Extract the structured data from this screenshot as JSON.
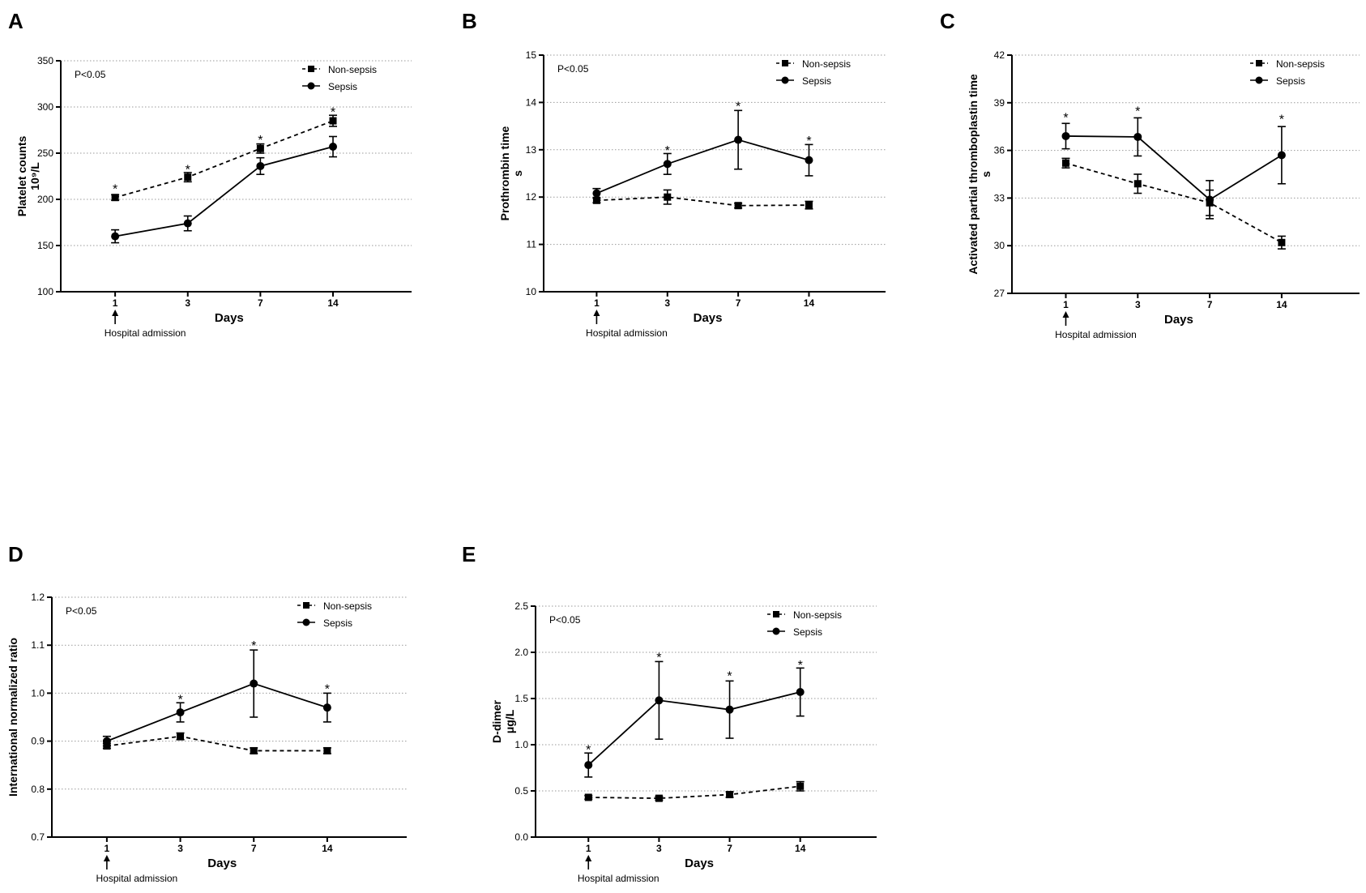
{
  "chart_data": [
    {
      "panel": "A",
      "type": "line",
      "categories": [
        "1",
        "3",
        "7",
        "14"
      ],
      "ylabel": "Platelet counts",
      "ylabel_unit": "10⁹/L",
      "xlabel": "Days",
      "ylim": [
        100,
        350
      ],
      "yticks": [
        "100",
        "150",
        "200",
        "250",
        "300",
        "350"
      ],
      "grid": true,
      "annotation": "P<0.05",
      "admission_label": "Hospital admission",
      "legend": [
        "Non-sepsis",
        "Sepsis"
      ],
      "series": [
        {
          "name": "Non-sepsis",
          "style": "dashed",
          "marker": "square",
          "values": [
            202,
            224,
            255,
            285
          ],
          "errors": [
            3,
            5,
            5,
            6
          ]
        },
        {
          "name": "Sepsis",
          "style": "solid",
          "marker": "circle",
          "values": [
            160,
            174,
            236,
            257
          ],
          "errors": [
            7,
            8,
            9,
            11
          ]
        }
      ],
      "significance": [
        "*",
        "*",
        "*",
        "*"
      ],
      "sig_values": [
        212,
        233,
        265,
        295
      ]
    },
    {
      "panel": "B",
      "type": "line",
      "categories": [
        "1",
        "3",
        "7",
        "14"
      ],
      "ylabel": "Prothrombin time",
      "ylabel_unit": "s",
      "xlabel": "Days",
      "ylim": [
        10,
        15
      ],
      "yticks": [
        "10",
        "11",
        "12",
        "13",
        "14",
        "15"
      ],
      "grid": true,
      "annotation": "P<0.05",
      "admission_label": "Hospital admission",
      "legend": [
        "Non-sepsis",
        "Sepsis"
      ],
      "series": [
        {
          "name": "Non-sepsis",
          "style": "dashed",
          "marker": "square",
          "values": [
            11.93,
            12.0,
            11.82,
            11.83
          ],
          "errors": [
            0.05,
            0.15,
            0.05,
            0.08
          ]
        },
        {
          "name": "Sepsis",
          "style": "solid",
          "marker": "circle",
          "values": [
            12.08,
            12.7,
            13.21,
            12.78
          ],
          "errors": [
            0.1,
            0.22,
            0.62,
            0.33
          ]
        }
      ],
      "significance": [
        "",
        "*",
        "*",
        "*"
      ],
      "sig_values": [
        0,
        13.0,
        13.93,
        13.2
      ]
    },
    {
      "panel": "C",
      "type": "line",
      "categories": [
        "1",
        "3",
        "7",
        "14"
      ],
      "ylabel": "Activated partial thromboplastin time",
      "ylabel_unit": "s",
      "xlabel": "Days",
      "ylim": [
        27,
        42
      ],
      "yticks": [
        "27",
        "30",
        "33",
        "36",
        "39",
        "42"
      ],
      "grid": true,
      "annotation": "",
      "admission_label": "Hospital admission",
      "legend": [
        "Non-sepsis",
        "Sepsis"
      ],
      "series": [
        {
          "name": "Non-sepsis",
          "style": "dashed",
          "marker": "square",
          "values": [
            35.2,
            33.9,
            32.7,
            30.2
          ],
          "errors": [
            0.3,
            0.6,
            0.8,
            0.4
          ]
        },
        {
          "name": "Sepsis",
          "style": "solid",
          "marker": "circle",
          "values": [
            36.9,
            36.85,
            32.9,
            35.7
          ],
          "errors": [
            0.8,
            1.2,
            1.2,
            1.8
          ]
        }
      ],
      "significance": [
        "*",
        "*",
        "",
        "*"
      ],
      "sig_values": [
        38.1,
        38.5,
        0,
        38.0
      ]
    },
    {
      "panel": "D",
      "type": "line",
      "categories": [
        "1",
        "3",
        "7",
        "14"
      ],
      "ylabel": "International normalized ratio",
      "ylabel_unit": "",
      "xlabel": "Days",
      "ylim": [
        0.7,
        1.2
      ],
      "yticks": [
        "0.7",
        "0.8",
        "0.9",
        "1.0",
        "1.1",
        "1.2"
      ],
      "grid": true,
      "annotation": "P<0.05",
      "admission_label": "Hospital admission",
      "legend": [
        "Non-sepsis",
        "Sepsis"
      ],
      "series": [
        {
          "name": "Non-sepsis",
          "style": "dashed",
          "marker": "square",
          "values": [
            0.89,
            0.91,
            0.88,
            0.88
          ],
          "errors": [
            0.005,
            0.007,
            0.006,
            0.006
          ]
        },
        {
          "name": "Sepsis",
          "style": "solid",
          "marker": "circle",
          "values": [
            0.9,
            0.96,
            1.02,
            0.97
          ],
          "errors": [
            0.01,
            0.02,
            0.07,
            0.03
          ]
        }
      ],
      "significance": [
        "",
        "*",
        "*",
        "*"
      ],
      "sig_values": [
        0,
        0.988,
        1.1,
        1.01
      ]
    },
    {
      "panel": "E",
      "type": "line",
      "categories": [
        "1",
        "3",
        "7",
        "14"
      ],
      "ylabel": "D-dimer",
      "ylabel_unit": "μg/L",
      "xlabel": "Days",
      "ylim": [
        0,
        2.5
      ],
      "yticks": [
        "0.0",
        "0.5",
        "1.0",
        "1.5",
        "2.0",
        "2.5"
      ],
      "grid": true,
      "annotation": "P<0.05",
      "admission_label": "Hospital admission",
      "legend": [
        "Non-sepsis",
        "Sepsis"
      ],
      "series": [
        {
          "name": "Non-sepsis",
          "style": "dashed",
          "marker": "square",
          "values": [
            0.43,
            0.42,
            0.46,
            0.55
          ],
          "errors": [
            0.02,
            0.02,
            0.03,
            0.05
          ]
        },
        {
          "name": "Sepsis",
          "style": "solid",
          "marker": "circle",
          "values": [
            0.78,
            1.48,
            1.38,
            1.57
          ],
          "errors": [
            0.13,
            0.42,
            0.31,
            0.26
          ]
        }
      ],
      "significance": [
        "*",
        "*",
        "*",
        "*"
      ],
      "sig_values": [
        0.95,
        1.95,
        1.75,
        1.87
      ]
    }
  ]
}
